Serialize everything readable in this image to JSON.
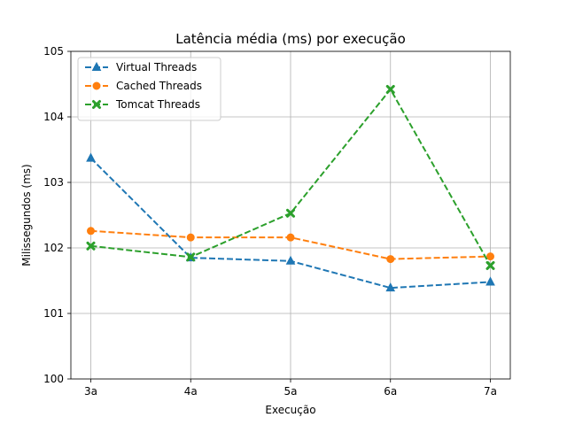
{
  "chart_data": {
    "type": "line",
    "title": "Latência média (ms) por execução",
    "xlabel": "Execução",
    "ylabel": "Milissegundos (ms)",
    "categories": [
      "3a",
      "4a",
      "5a",
      "6a",
      "7a"
    ],
    "ylim": [
      100,
      105
    ],
    "yticks": [
      100,
      101,
      102,
      103,
      104,
      105
    ],
    "grid": true,
    "legend_position": "top-left",
    "series": [
      {
        "name": "Virtual Threads",
        "values": [
          103.37,
          101.85,
          101.8,
          101.39,
          101.48
        ],
        "color": "#1f77b4",
        "marker": "triangle"
      },
      {
        "name": "Cached Threads",
        "values": [
          102.26,
          102.16,
          102.16,
          101.83,
          101.87
        ],
        "color": "#ff7f0e",
        "marker": "circle"
      },
      {
        "name": "Tomcat Threads",
        "values": [
          102.03,
          101.86,
          102.53,
          104.42,
          101.73
        ],
        "color": "#2ca02c",
        "marker": "x"
      }
    ]
  }
}
